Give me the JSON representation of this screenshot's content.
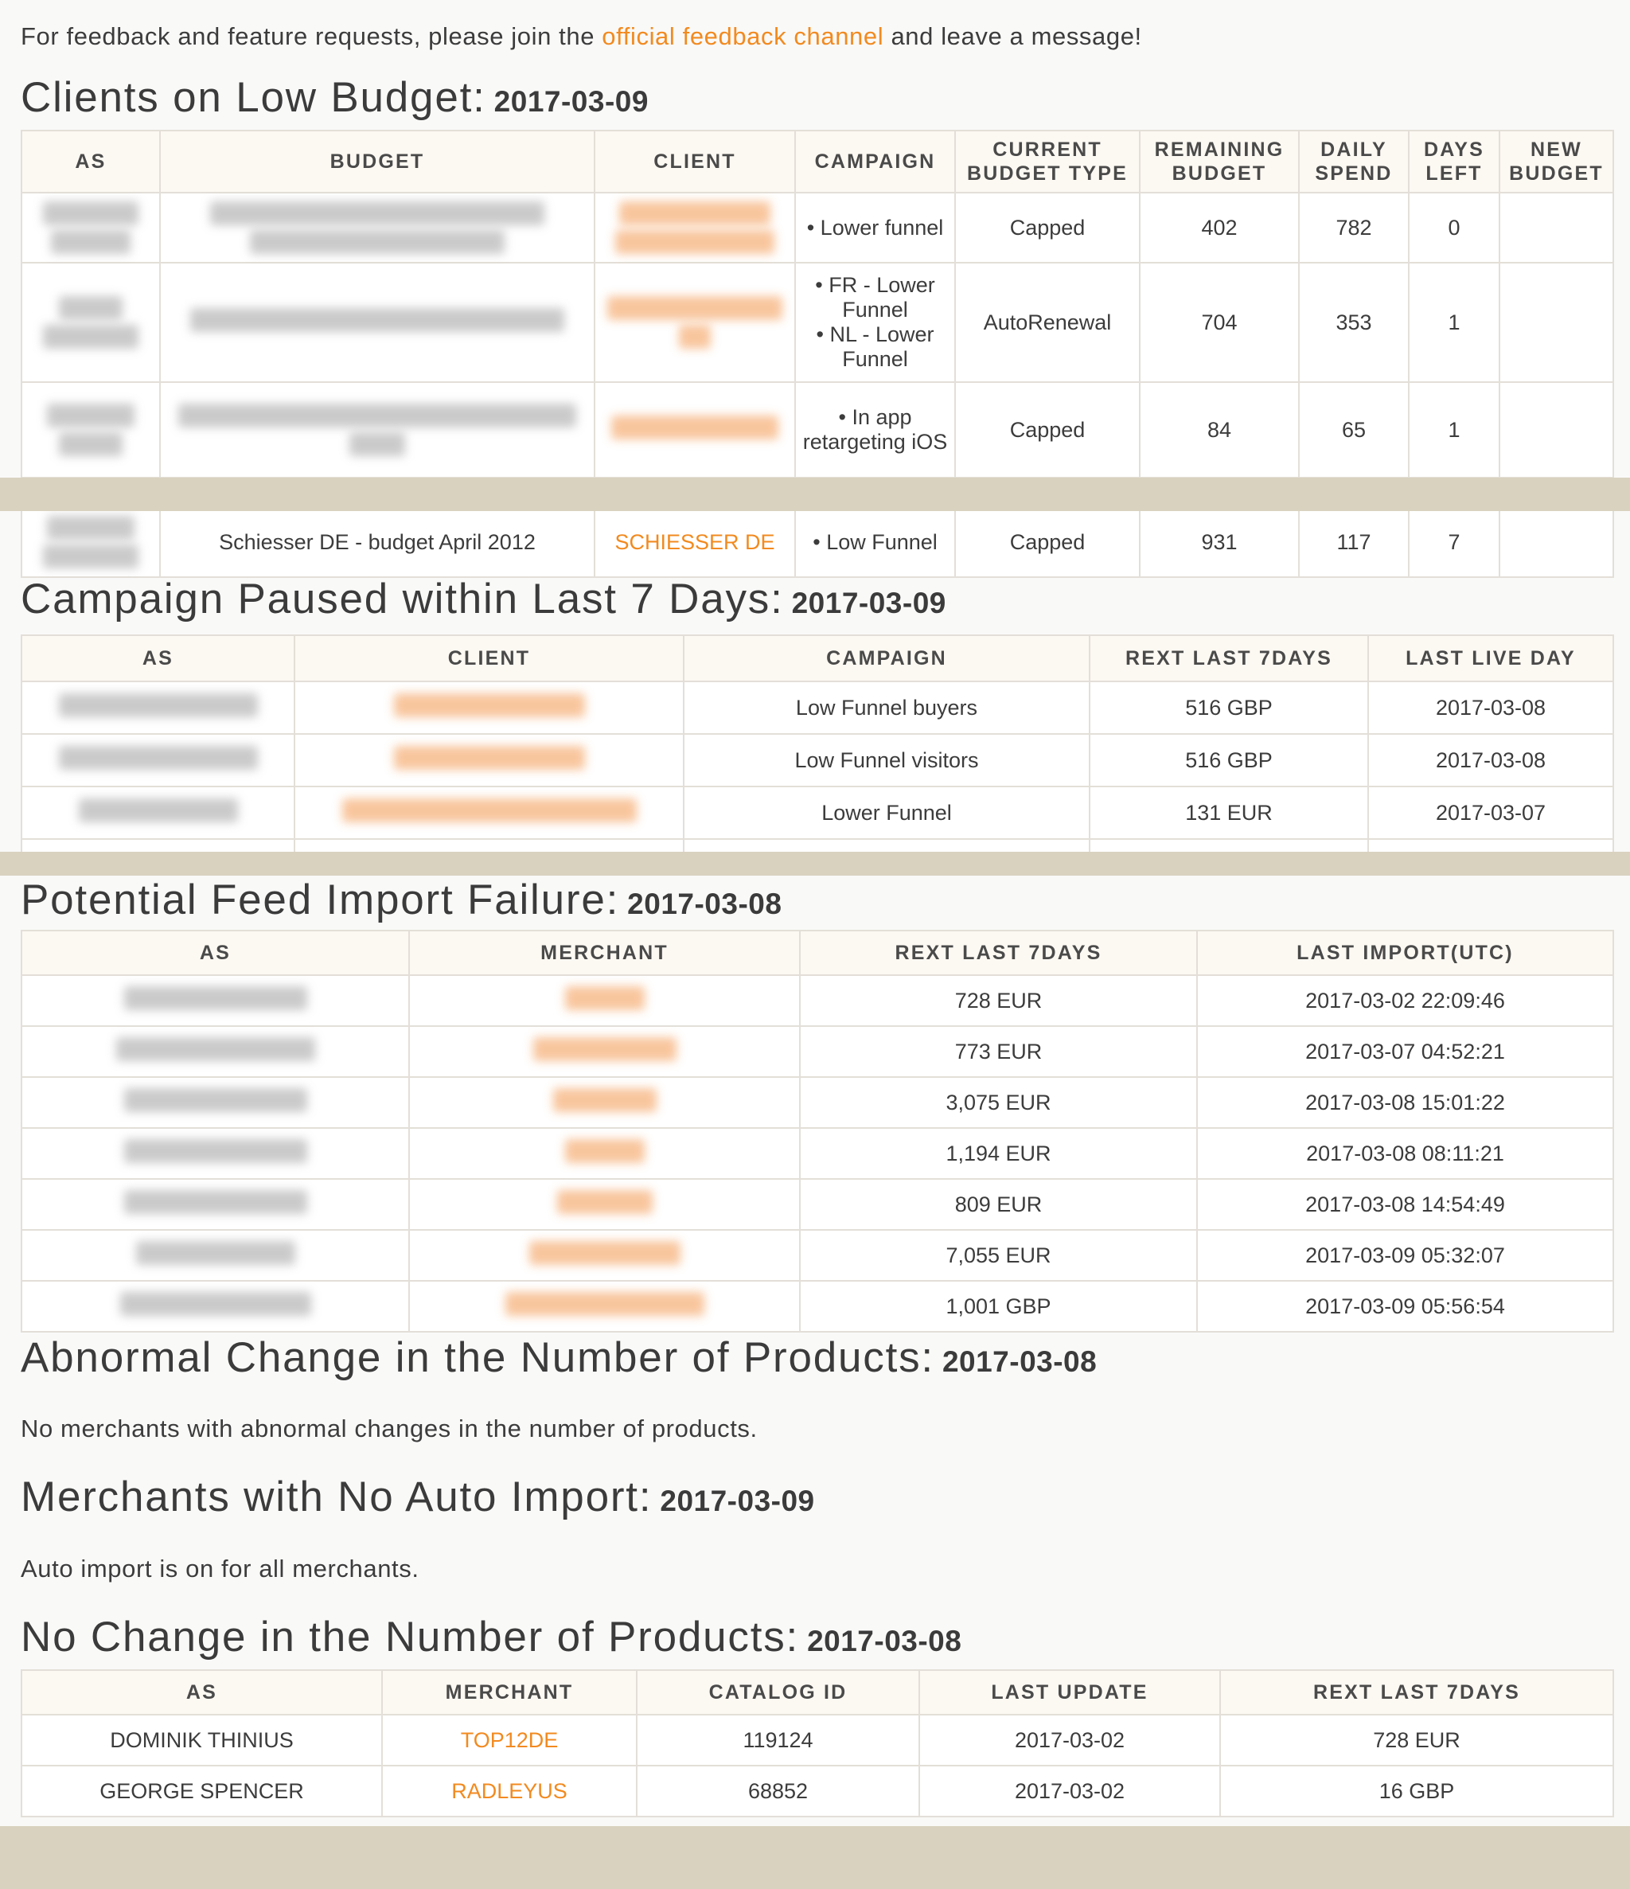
{
  "intro": {
    "before": "For feedback and feature requests, please join the",
    "link": "official feedback channel",
    "after": "and leave a message!"
  },
  "low_budget": {
    "title": "Clients on Low Budget:",
    "date": "2017-03-09",
    "headers": [
      "AS",
      "BUDGET",
      "CLIENT",
      "CAMPAIGN",
      "CURRENT BUDGET TYPE",
      "REMAINING BUDGET",
      "DAILY SPEND",
      "DAYS LEFT",
      "NEW BUDGET"
    ],
    "rows": [
      {
        "campaigns": [
          "Lower funnel"
        ],
        "type": "Capped",
        "remaining": "402",
        "daily": "782",
        "days": "0",
        "new": ""
      },
      {
        "campaigns": [
          "FR - Lower Funnel",
          "NL - Lower Funnel"
        ],
        "type": "AutoRenewal",
        "remaining": "704",
        "daily": "353",
        "days": "1",
        "new": ""
      },
      {
        "campaigns": [
          "In app retargeting iOS"
        ],
        "type": "Capped",
        "remaining": "84",
        "daily": "65",
        "days": "1",
        "new": ""
      },
      {
        "budget": "Schiesser DE - budget April 2012",
        "client": "SCHIESSER DE",
        "campaigns": [
          "Low Funnel"
        ],
        "type": "Capped",
        "remaining": "931",
        "daily": "117",
        "days": "7",
        "new": ""
      }
    ]
  },
  "paused": {
    "title": "Campaign Paused within Last 7 Days:",
    "date": "2017-03-09",
    "headers": [
      "AS",
      "CLIENT",
      "CAMPAIGN",
      "REXT LAST 7DAYS",
      "LAST LIVE DAY"
    ],
    "rows": [
      {
        "campaign": "Low Funnel buyers",
        "rext": "516 GBP",
        "last_live": "2017-03-08"
      },
      {
        "campaign": "Low Funnel visitors",
        "rext": "516 GBP",
        "last_live": "2017-03-08"
      },
      {
        "campaign": "Lower Funnel",
        "rext": "131 EUR",
        "last_live": "2017-03-07"
      }
    ]
  },
  "feed_import": {
    "title": "Potential Feed Import Failure:",
    "date": "2017-03-08",
    "headers": [
      "AS",
      "MERCHANT",
      "REXT LAST 7DAYS",
      "LAST IMPORT(UTC)"
    ],
    "rows": [
      {
        "rext": "728 EUR",
        "last_import": "2017-03-02 22:09:46"
      },
      {
        "rext": "773 EUR",
        "last_import": "2017-03-07 04:52:21"
      },
      {
        "rext": "3,075 EUR",
        "last_import": "2017-03-08 15:01:22"
      },
      {
        "rext": "1,194 EUR",
        "last_import": "2017-03-08 08:11:21"
      },
      {
        "rext": "809 EUR",
        "last_import": "2017-03-08 14:54:49"
      },
      {
        "rext": "7,055 EUR",
        "last_import": "2017-03-09 05:32:07"
      },
      {
        "rext": "1,001 GBP",
        "last_import": "2017-03-09 05:56:54"
      }
    ]
  },
  "abnormal": {
    "title": "Abnormal Change in the Number of Products:",
    "date": "2017-03-08",
    "message": "No merchants with abnormal changes in the number of products."
  },
  "no_auto_import": {
    "title": "Merchants with No Auto Import:",
    "date": "2017-03-09",
    "message": "Auto import is on for all merchants."
  },
  "no_change": {
    "title": "No Change in the Number of Products:",
    "date": "2017-03-08",
    "headers": [
      "AS",
      "MERCHANT",
      "CATALOG ID",
      "LAST UPDATE",
      "REXT LAST 7DAYS"
    ],
    "rows": [
      {
        "as": "DOMINIK THINIUS",
        "merchant": "TOP12DE",
        "catalog_id": "119124",
        "last_update": "2017-03-02",
        "rext": "728 EUR"
      },
      {
        "as": "GEORGE SPENCER",
        "merchant": "RADLEYUS",
        "catalog_id": "68852",
        "last_update": "2017-03-02",
        "rext": "16 GBP"
      }
    ]
  },
  "colors": {
    "accent": "#f28a1f",
    "separator": "#d9d2bf",
    "header_bg": "#fcf8f2",
    "border": "#e3dfd8"
  }
}
